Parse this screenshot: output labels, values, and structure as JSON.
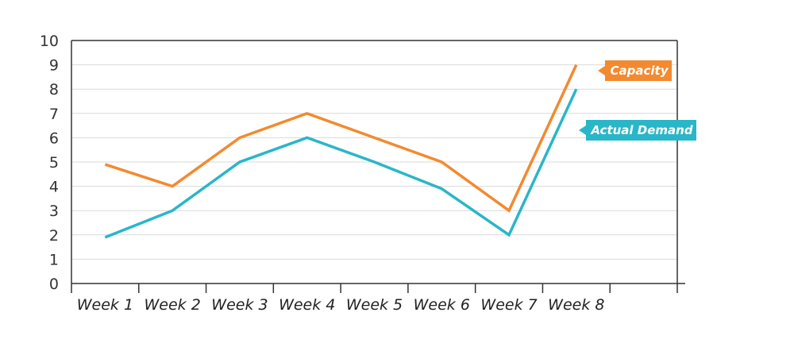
{
  "chart_data": {
    "type": "line",
    "categories": [
      "Week 1",
      "Week 2",
      "Week 3",
      "Week 4",
      "Week 5",
      "Week 6",
      "Week 7",
      "Week 8"
    ],
    "series": [
      {
        "name": "Capacity",
        "values": [
          4.9,
          4,
          6,
          7,
          6,
          5,
          3,
          9
        ],
        "color": "#f28a30"
      },
      {
        "name": "Actual Demand",
        "values": [
          1.9,
          3,
          5,
          6,
          5,
          3.9,
          2,
          8
        ],
        "color": "#29b6c8"
      }
    ],
    "ylim": [
      0,
      10
    ],
    "yticks": [
      "0",
      "1",
      "2",
      "3",
      "4",
      "5",
      "6",
      "7",
      "8",
      "9",
      "10"
    ],
    "grid": true,
    "legend": "inline-labels-right"
  }
}
